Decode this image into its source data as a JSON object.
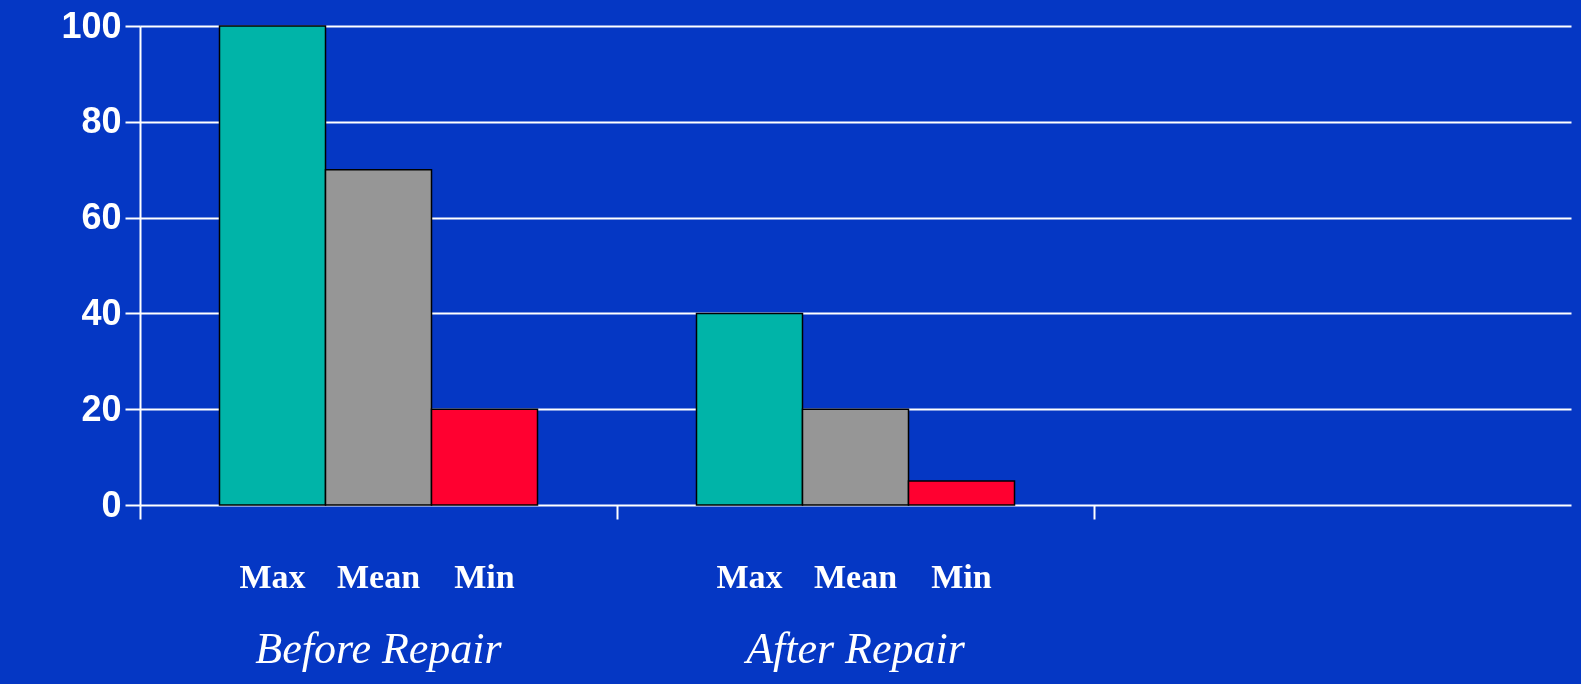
{
  "chart_data": {
    "type": "bar",
    "categories": [
      "Before Repair",
      "After Repair",
      null
    ],
    "series": [
      {
        "name": "Max",
        "color": "#00b4a8",
        "values": [
          100,
          40,
          null
        ]
      },
      {
        "name": "Mean",
        "color": "#969696",
        "values": [
          70,
          20,
          null
        ]
      },
      {
        "name": "Min",
        "color": "#ff0030",
        "values": [
          20,
          5,
          null
        ]
      }
    ],
    "ylim": [
      0,
      100
    ],
    "yticks": [
      0,
      20,
      40,
      60,
      80,
      100
    ],
    "grid": "y"
  }
}
